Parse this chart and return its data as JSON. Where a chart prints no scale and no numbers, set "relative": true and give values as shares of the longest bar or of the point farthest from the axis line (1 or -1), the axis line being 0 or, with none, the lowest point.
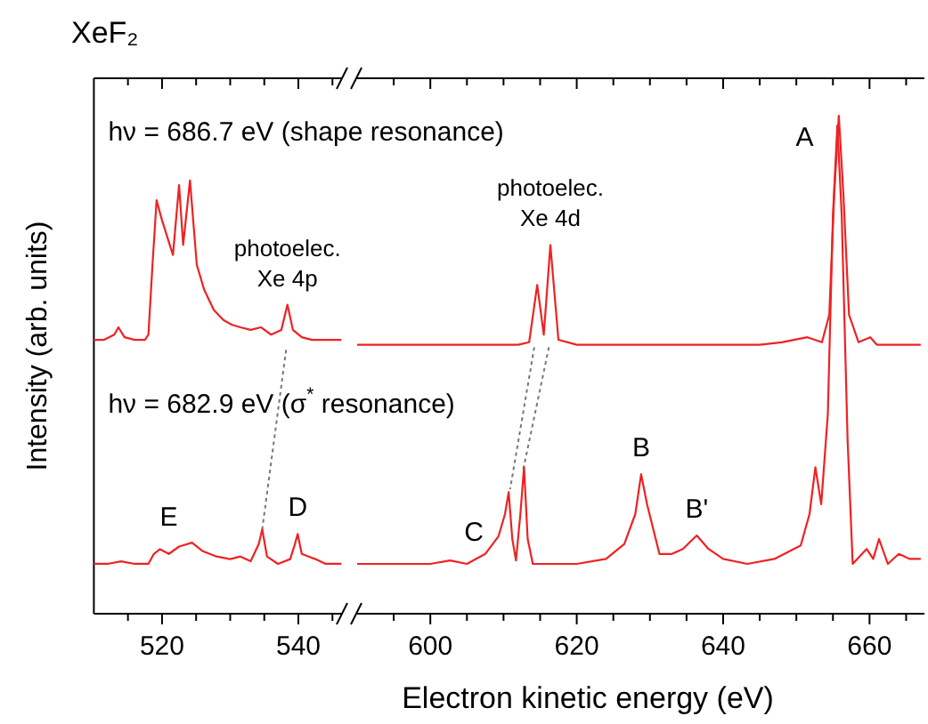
{
  "chart_data": [
    {
      "type": "line",
      "title": "XeF₂",
      "ylabel": "Intensity (arb. units)",
      "relative": true,
      "xlim": [
        510,
        546.4
      ],
      "xticks": [
        {
          "value": 515,
          "label": null
        },
        520,
        {
          "value": 525,
          "label": null
        },
        {
          "value": 530,
          "label": null
        },
        {
          "value": 535,
          "label": null
        },
        540,
        {
          "value": 545,
          "label": null
        }
      ],
      "grid": false,
      "marker": "none",
      "line_style": "solid",
      "annotations": [
        {
          "text": "photoelec.\nXe 4p",
          "x": 538.4,
          "y": 0.713
        },
        {
          "text": "E",
          "x": 521,
          "y": 0.161
        },
        {
          "text": "D",
          "x": 539.9,
          "y": 0.184
        }
      ],
      "series": [
        {
          "name": "hν = 686.7 eV (shape resonance)",
          "color": "#ee2222",
          "x": [
            510,
            511.5,
            513,
            513.6,
            514.5,
            516,
            517.5,
            518,
            518.6,
            519.2,
            520,
            521.6,
            522.5,
            523.1,
            524.1,
            525.1,
            526.2,
            527.6,
            529,
            530.2,
            531.5,
            533,
            534.5,
            536,
            537.5,
            538.4,
            539.2,
            540.5,
            542,
            544,
            546.3
          ],
          "values": [
            0.632,
            0.632,
            0.644,
            0.661,
            0.638,
            0.632,
            0.632,
            0.644,
            0.805,
            0.954,
            0.908,
            0.828,
            0.989,
            0.851,
            1.0,
            0.805,
            0.747,
            0.701,
            0.678,
            0.667,
            0.661,
            0.655,
            0.661,
            0.644,
            0.655,
            0.713,
            0.655,
            0.638,
            0.632,
            0.632,
            0.632
          ]
        },
        {
          "name": "hν = 682.9 eV (σ$^{*}$ resonance)",
          "color": "#ee2222",
          "x": [
            510,
            512,
            514,
            516,
            518,
            518.8,
            519.7,
            521,
            522.5,
            524.4,
            526,
            528,
            530,
            531.5,
            533,
            534.2,
            534.7,
            535.4,
            537,
            538.8,
            539.5,
            539.9,
            540.5,
            541.5,
            542.5,
            544,
            546.3
          ],
          "values": [
            0.115,
            0.115,
            0.121,
            0.115,
            0.115,
            0.138,
            0.149,
            0.138,
            0.155,
            0.164,
            0.144,
            0.132,
            0.126,
            0.132,
            0.121,
            0.161,
            0.195,
            0.132,
            0.115,
            0.126,
            0.161,
            0.184,
            0.138,
            0.132,
            0.126,
            0.115,
            0.115
          ]
        }
      ]
    },
    {
      "type": "line",
      "xlabel": "Electron kinetic energy (eV)",
      "relative": true,
      "xlim": [
        590,
        667.5
      ],
      "xticks": [
        {
          "value": 595,
          "label": null
        },
        600,
        {
          "value": 605,
          "label": null
        },
        {
          "value": 610,
          "label": null
        },
        {
          "value": 615,
          "label": null
        },
        620,
        {
          "value": 625,
          "label": null
        },
        {
          "value": 630,
          "label": null
        },
        {
          "value": 635,
          "label": null
        },
        640,
        {
          "value": 645,
          "label": null
        },
        {
          "value": 650,
          "label": null
        },
        {
          "value": 655,
          "label": null
        },
        660,
        {
          "value": 665,
          "label": null
        }
      ],
      "grid": false,
      "marker": "none",
      "line_style": "solid",
      "annotations": [
        {
          "text": "photoelec.\nXe 4d",
          "x": 616.4,
          "y": 0.74
        },
        "A",
        {
          "text": "B",
          "x": 628.8,
          "y": 0.28
        },
        {
          "text": "B'",
          "x": 636.4,
          "y": 0.157
        },
        "C"
      ],
      "series": [
        {
          "color": "#ee2222",
          "x": [
            590,
            595,
            600,
            605,
            610,
            612,
            613.5,
            614.6,
            615.5,
            616.4,
            617.5,
            620,
            625,
            630,
            635,
            640,
            645,
            648,
            651.5,
            653.5,
            654.5,
            655.2,
            655.8,
            656.4,
            657.2,
            658.5,
            660.1,
            661,
            663,
            665,
            667
          ],
          "values": [
            0.54,
            0.54,
            0.54,
            0.54,
            0.54,
            0.54,
            0.545,
            0.66,
            0.56,
            0.74,
            0.55,
            0.54,
            0.54,
            0.54,
            0.54,
            0.54,
            0.54,
            0.545,
            0.555,
            0.545,
            0.6,
            0.85,
            1.0,
            0.85,
            0.6,
            0.545,
            0.555,
            0.54,
            0.54,
            0.54,
            0.54
          ]
        },
        {
          "color": "#ee2222",
          "x": [
            590,
            595,
            600,
            602.7,
            605,
            607.5,
            609.3,
            610.2,
            610.7,
            611.2,
            611.7,
            612.3,
            612.8,
            613.3,
            614,
            617,
            620,
            624,
            626.5,
            628,
            628.8,
            629.6,
            631.3,
            633,
            634.5,
            636.4,
            638,
            640,
            643.3,
            647,
            650.6,
            651.8,
            652.6,
            653.4,
            654.3,
            655,
            655.6,
            656.2,
            657,
            657.7,
            659.6,
            660.5,
            661.3,
            662.5,
            664,
            665.5,
            667
          ],
          "values": [
            0.1,
            0.1,
            0.1,
            0.107,
            0.1,
            0.12,
            0.155,
            0.2,
            0.244,
            0.15,
            0.107,
            0.2,
            0.294,
            0.15,
            0.1,
            0.1,
            0.1,
            0.11,
            0.14,
            0.2,
            0.28,
            0.22,
            0.12,
            0.12,
            0.13,
            0.157,
            0.13,
            0.11,
            0.1,
            0.11,
            0.137,
            0.2,
            0.294,
            0.22,
            0.4,
            0.8,
            0.98,
            0.8,
            0.35,
            0.1,
            0.13,
            0.11,
            0.15,
            0.1,
            0.12,
            0.11,
            0.11
          ]
        }
      ]
    }
  ]
}
